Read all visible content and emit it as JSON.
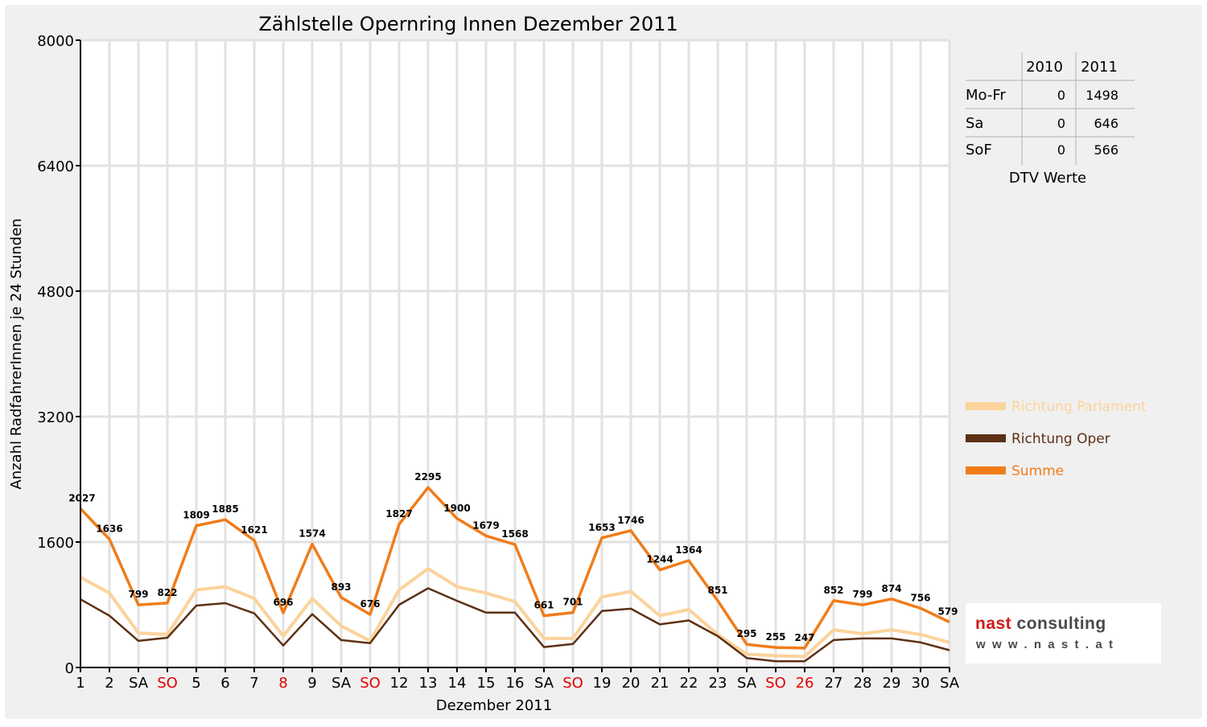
{
  "chart_data": {
    "type": "line",
    "title": "Zählstelle Opernring Innen Dezember 2011",
    "xlabel": "Dezember 2011",
    "ylabel": "Anzahl RadfahrerInnen je 24 Stunden",
    "ylim": [
      0,
      8000
    ],
    "yticks": [
      "0",
      "1600",
      "3200",
      "4800",
      "6400",
      "8000"
    ],
    "grid": true,
    "legend_position": "right",
    "categories": [
      "1",
      "2",
      "SA",
      "SO",
      "5",
      "6",
      "7",
      "8",
      "9",
      "SA",
      "SO",
      "12",
      "13",
      "14",
      "15",
      "16",
      "SA",
      "SO",
      "19",
      "20",
      "21",
      "22",
      "23",
      "SA",
      "SO",
      "26",
      "27",
      "28",
      "29",
      "30",
      "SA"
    ],
    "category_colors": [
      "#000000",
      "#000000",
      "#000000",
      "#e30000",
      "#000000",
      "#000000",
      "#000000",
      "#e30000",
      "#000000",
      "#000000",
      "#e30000",
      "#000000",
      "#000000",
      "#000000",
      "#000000",
      "#000000",
      "#000000",
      "#e30000",
      "#000000",
      "#000000",
      "#000000",
      "#000000",
      "#000000",
      "#000000",
      "#e30000",
      "#e30000",
      "#000000",
      "#000000",
      "#000000",
      "#000000",
      "#000000"
    ],
    "series": [
      {
        "name": "Richtung Parlament",
        "color": "#fbd39b",
        "values": [
          1150,
          950,
          440,
          420,
          990,
          1030,
          880,
          400,
          880,
          530,
          340,
          990,
          1260,
          1030,
          950,
          840,
          370,
          370,
          900,
          970,
          660,
          740,
          420,
          170,
          150,
          140,
          480,
          430,
          480,
          420,
          320
        ]
      },
      {
        "name": "Richtung Oper",
        "color": "#5d3014",
        "values": [
          870,
          660,
          340,
          380,
          790,
          820,
          690,
          280,
          680,
          350,
          310,
          800,
          1010,
          850,
          700,
          700,
          260,
          300,
          720,
          750,
          550,
          600,
          400,
          120,
          80,
          80,
          350,
          370,
          370,
          320,
          220
        ]
      },
      {
        "name": "Summe",
        "color": "#f07c1a",
        "values": [
          2027,
          1636,
          799,
          822,
          1809,
          1885,
          1621,
          696,
          1574,
          893,
          676,
          1827,
          2295,
          1900,
          1679,
          1568,
          661,
          701,
          1653,
          1746,
          1244,
          1364,
          851,
          295,
          255,
          247,
          852,
          799,
          874,
          756,
          579
        ]
      }
    ],
    "data_labels": [
      "2027",
      "1636",
      "799",
      "822",
      "1809",
      "1885",
      "1621",
      "696",
      "1574",
      "893",
      "676",
      "1827",
      "2295",
      "1900",
      "1679",
      "1568",
      "661",
      "701",
      "1653",
      "1746",
      "1244",
      "1364",
      "851",
      "295",
      "255",
      "247",
      "852",
      "799",
      "874",
      "756",
      "579"
    ]
  },
  "dtv_table": {
    "headers": [
      "",
      "2010",
      "2011"
    ],
    "rows": [
      {
        "label": "Mo-Fr",
        "v2010": "0",
        "v2011": "1498"
      },
      {
        "label": "Sa",
        "v2010": "0",
        "v2011": "646"
      },
      {
        "label": "SoF",
        "v2010": "0",
        "v2011": "566"
      }
    ],
    "caption": "DTV Werte"
  },
  "logo": {
    "word1": "nast",
    "word2": " consulting",
    "url": "www.nast.at"
  }
}
